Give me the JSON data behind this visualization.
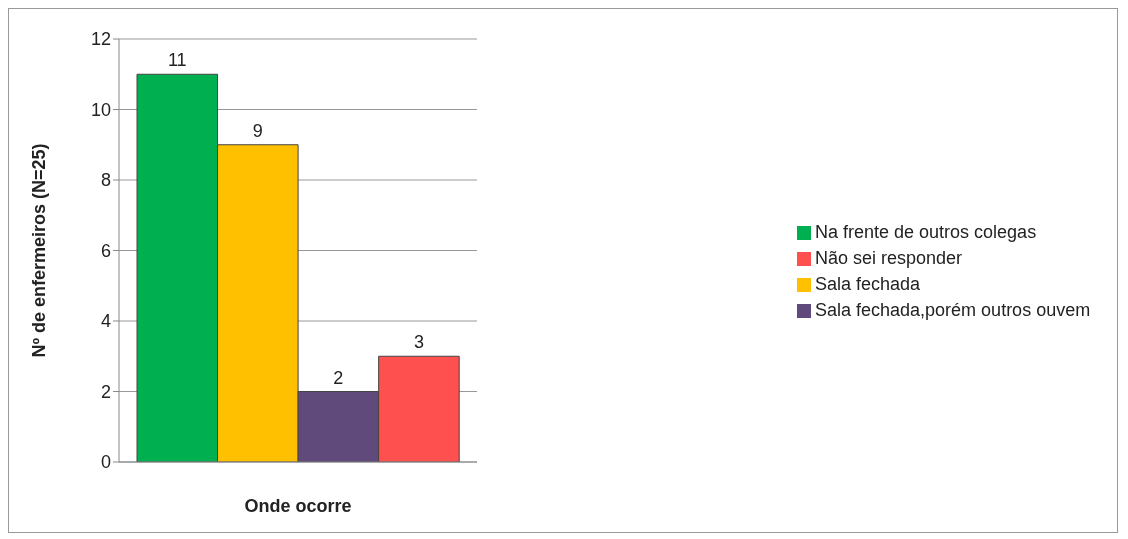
{
  "chart_data": {
    "type": "bar",
    "xlabel": "Onde ocorre",
    "ylabel": "Nº de enfermeiros (N=25)",
    "categories": [
      null
    ],
    "series": [
      {
        "name": "Na frente de outros colegas",
        "color": "#00b050",
        "values": [
          11
        ]
      },
      {
        "name": "Sala fechada",
        "color": "#ffc000",
        "values": [
          9
        ]
      },
      {
        "name": "Sala fechada,porém outros ouvem",
        "color": "#604a7b",
        "values": [
          2
        ]
      },
      {
        "name": "Não sei responder",
        "color": "#ff5050",
        "values": [
          3
        ]
      }
    ],
    "ylim": [
      0,
      12
    ],
    "yticks": [
      0,
      2,
      4,
      6,
      8,
      10,
      12
    ],
    "grid": "y",
    "legend": "right",
    "data_labels": true
  }
}
